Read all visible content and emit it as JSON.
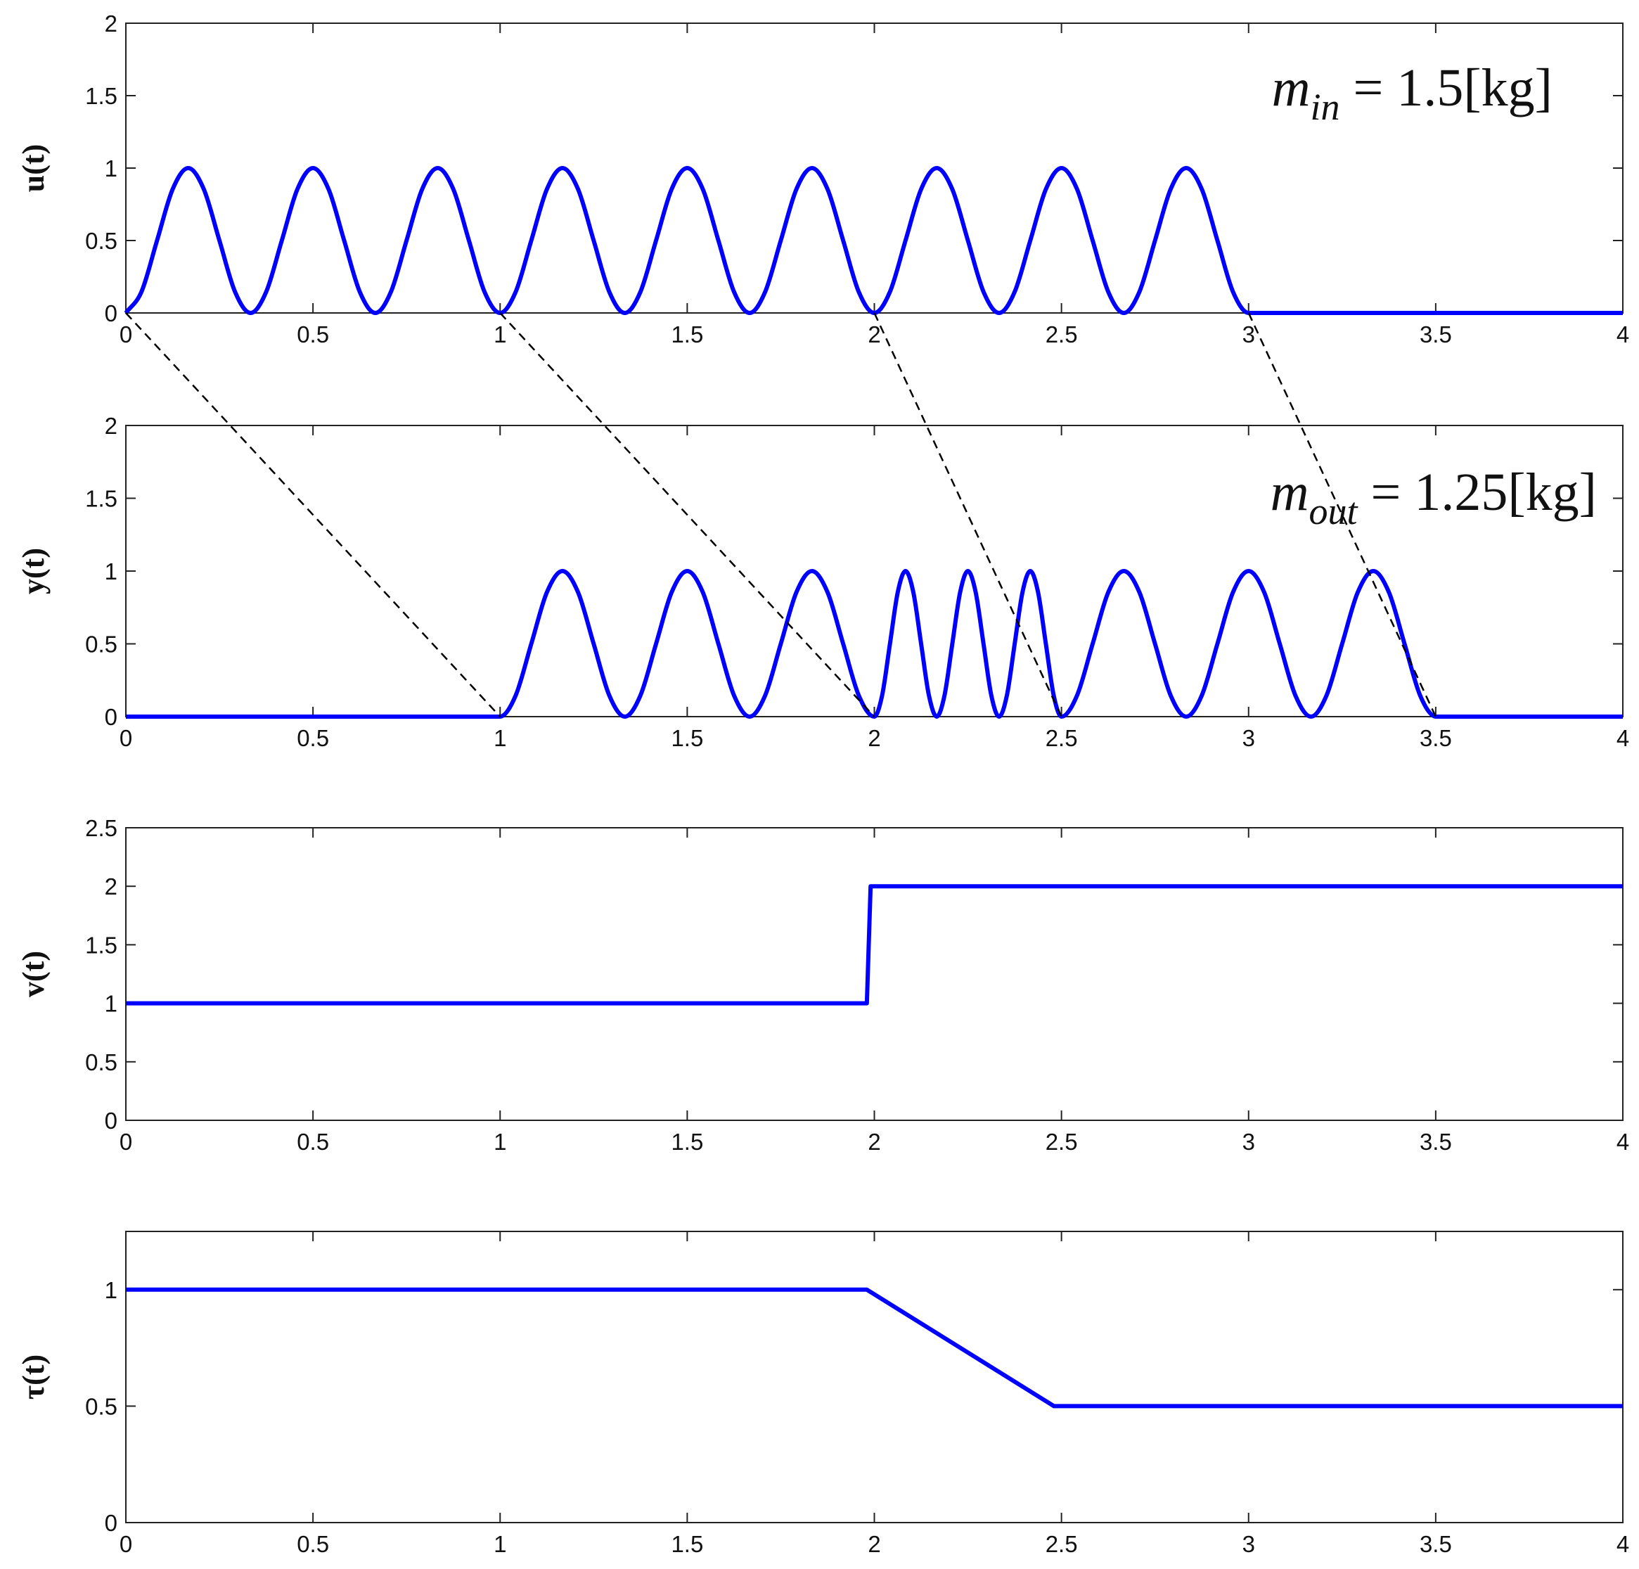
{
  "chart_data": [
    {
      "type": "line",
      "ylabel": "u(t)",
      "color": "#0000ff",
      "annotation": {
        "base": "m",
        "sub": "in",
        "rest": " = 1.5[kg]"
      },
      "x": [
        0,
        0.0417,
        0.0833,
        0.125,
        0.1667,
        0.2083,
        0.25,
        0.2917,
        0.3333,
        0.375,
        0.4167,
        0.4583,
        0.5,
        0.5417,
        0.5833,
        0.625,
        0.6667,
        0.7083,
        0.75,
        0.7917,
        0.8333,
        0.875,
        0.9167,
        0.9583,
        1,
        1.0417,
        1.0833,
        1.125,
        1.1667,
        1.2083,
        1.25,
        1.2917,
        1.3333,
        1.375,
        1.4167,
        1.4583,
        1.5,
        1.5417,
        1.5833,
        1.625,
        1.6667,
        1.7083,
        1.75,
        1.7917,
        1.8333,
        1.875,
        1.9167,
        1.9583,
        2,
        2.0417,
        2.0833,
        2.125,
        2.1667,
        2.2083,
        2.25,
        2.2917,
        2.3333,
        2.375,
        2.4167,
        2.4583,
        2.5,
        2.5417,
        2.5833,
        2.625,
        2.6667,
        2.7083,
        2.75,
        2.7917,
        2.8333,
        2.875,
        2.9167,
        2.9583,
        3,
        4
      ],
      "values": [
        0,
        0.146,
        0.5,
        0.854,
        1,
        0.854,
        0.5,
        0.146,
        0,
        0.146,
        0.5,
        0.854,
        1,
        0.854,
        0.5,
        0.146,
        0,
        0.146,
        0.5,
        0.854,
        1,
        0.854,
        0.5,
        0.146,
        0,
        0.146,
        0.5,
        0.854,
        1,
        0.854,
        0.5,
        0.146,
        0,
        0.146,
        0.5,
        0.854,
        1,
        0.854,
        0.5,
        0.146,
        0,
        0.146,
        0.5,
        0.854,
        1,
        0.854,
        0.5,
        0.146,
        0,
        0.146,
        0.5,
        0.854,
        1,
        0.854,
        0.5,
        0.146,
        0,
        0.146,
        0.5,
        0.854,
        1,
        0.854,
        0.5,
        0.146,
        0,
        0.146,
        0.5,
        0.854,
        1,
        0.854,
        0.5,
        0.146,
        0,
        0
      ],
      "xlim": [
        0,
        4
      ],
      "xticks": [
        0,
        0.5,
        1,
        1.5,
        2,
        2.5,
        3,
        3.5,
        4
      ],
      "ylim": [
        0,
        2
      ],
      "yticks": [
        0,
        0.5,
        1,
        1.5,
        2
      ]
    },
    {
      "type": "line",
      "ylabel": "y(t)",
      "color": "#0000ff",
      "annotation": {
        "base": "m",
        "sub": "out",
        "rest": " = 1.25[kg]"
      },
      "x": [
        0,
        1,
        1.0417,
        1.0833,
        1.125,
        1.1667,
        1.2083,
        1.25,
        1.2917,
        1.3333,
        1.375,
        1.4167,
        1.4583,
        1.5,
        1.5417,
        1.5833,
        1.625,
        1.6667,
        1.7083,
        1.75,
        1.7917,
        1.8333,
        1.875,
        1.9167,
        1.9583,
        2,
        2.0208,
        2.0417,
        2.0625,
        2.0833,
        2.1042,
        2.125,
        2.1458,
        2.1667,
        2.1875,
        2.2083,
        2.2292,
        2.25,
        2.2708,
        2.2917,
        2.3125,
        2.3333,
        2.3542,
        2.375,
        2.3958,
        2.4167,
        2.4375,
        2.4583,
        2.4792,
        2.5,
        2.5417,
        2.5833,
        2.625,
        2.6667,
        2.7083,
        2.75,
        2.7917,
        2.8333,
        2.875,
        2.9167,
        2.9583,
        3,
        3.0417,
        3.0833,
        3.125,
        3.1667,
        3.2083,
        3.25,
        3.2917,
        3.3333,
        3.375,
        3.4167,
        3.4583,
        3.5,
        4
      ],
      "values": [
        0,
        0,
        0.146,
        0.5,
        0.854,
        1,
        0.854,
        0.5,
        0.146,
        0,
        0.146,
        0.5,
        0.854,
        1,
        0.854,
        0.5,
        0.146,
        0,
        0.146,
        0.5,
        0.854,
        1,
        0.854,
        0.5,
        0.146,
        0,
        0.146,
        0.5,
        0.854,
        1,
        0.854,
        0.5,
        0.146,
        0,
        0.146,
        0.5,
        0.854,
        1,
        0.854,
        0.5,
        0.146,
        0,
        0.146,
        0.5,
        0.854,
        1,
        0.854,
        0.5,
        0.146,
        0,
        0.146,
        0.5,
        0.854,
        1,
        0.854,
        0.5,
        0.146,
        0,
        0.146,
        0.5,
        0.854,
        1,
        0.854,
        0.5,
        0.146,
        0,
        0.146,
        0.5,
        0.854,
        1,
        0.854,
        0.5,
        0.146,
        0,
        0
      ],
      "xlim": [
        0,
        4
      ],
      "xticks": [
        0,
        0.5,
        1,
        1.5,
        2,
        2.5,
        3,
        3.5,
        4
      ],
      "ylim": [
        0,
        2
      ],
      "yticks": [
        0,
        0.5,
        1,
        1.5,
        2
      ]
    },
    {
      "type": "line",
      "ylabel": "v(t)",
      "color": "#0000ff",
      "x": [
        0,
        1.98,
        1.99,
        4
      ],
      "values": [
        1,
        1,
        2,
        2
      ],
      "xlim": [
        0,
        4
      ],
      "xticks": [
        0,
        0.5,
        1,
        1.5,
        2,
        2.5,
        3,
        3.5,
        4
      ],
      "ylim": [
        0,
        2.5
      ],
      "yticks": [
        0,
        0.5,
        1,
        1.5,
        2,
        2.5
      ]
    },
    {
      "type": "line",
      "ylabel": "τ(t)",
      "color": "#0000ff",
      "x": [
        0,
        1.98,
        2.48,
        4
      ],
      "values": [
        1,
        1,
        0.5,
        0.5
      ],
      "xlim": [
        0,
        4
      ],
      "xticks": [
        0,
        0.5,
        1,
        1.5,
        2,
        2.5,
        3,
        3.5,
        4
      ],
      "ylim": [
        0,
        1.25
      ],
      "yticks": [
        0,
        0.5,
        1
      ]
    }
  ],
  "delay_lines": [
    [
      0,
      1
    ],
    [
      1,
      2
    ],
    [
      2,
      2.5
    ],
    [
      3,
      3.5
    ]
  ]
}
